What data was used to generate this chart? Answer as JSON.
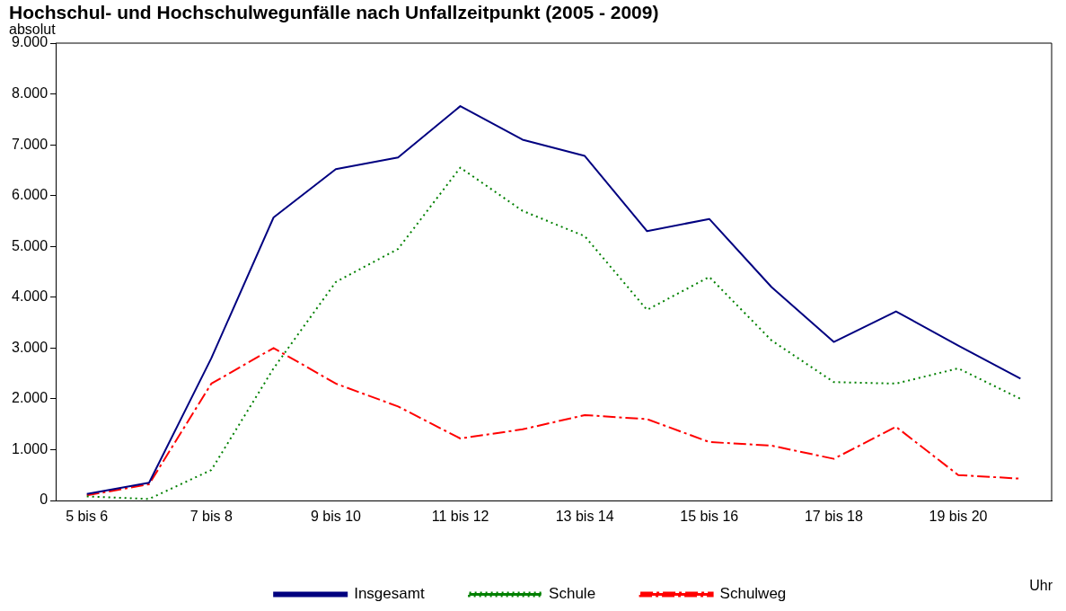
{
  "chart_data": {
    "type": "line",
    "title": "Hochschul- und Hochschulwegunfälle nach Unfallzeitpunkt (2005 - 2009)",
    "ylabel": "absolut",
    "xlabel": "Uhr",
    "categories": [
      "5 bis 6",
      null,
      "7 bis 8",
      null,
      "9 bis 10",
      null,
      "11 bis 12",
      null,
      "13 bis 14",
      null,
      "15 bis 16",
      null,
      "17 bis 18",
      null,
      "19 bis 20",
      null
    ],
    "series": [
      {
        "name": "Insgesamt",
        "color": "#000080",
        "line_style": "solid",
        "values": [
          130,
          350,
          2800,
          5570,
          6520,
          6750,
          7760,
          7100,
          6780,
          5300,
          5540,
          4200,
          3120,
          3720,
          3050,
          2400
        ]
      },
      {
        "name": "Schule",
        "color": "#008000",
        "line_style": "dotted",
        "values": [
          80,
          30,
          600,
          2600,
          4300,
          4950,
          6550,
          5700,
          5200,
          3750,
          4400,
          3150,
          2330,
          2300,
          2600,
          2000
        ]
      },
      {
        "name": "Schulweg",
        "color": "#ff0000",
        "line_style": "dashed",
        "values": [
          100,
          320,
          2300,
          3000,
          2300,
          1850,
          1220,
          1400,
          1680,
          1600,
          1150,
          1080,
          820,
          1450,
          500,
          430
        ]
      }
    ],
    "ylim": [
      0,
      9000
    ],
    "yticks": [
      {
        "value": 0,
        "label": "0"
      },
      {
        "value": 1000,
        "label": "1.000"
      },
      {
        "value": 2000,
        "label": "2.000"
      },
      {
        "value": 3000,
        "label": "3.000"
      },
      {
        "value": 4000,
        "label": "4.000"
      },
      {
        "value": 5000,
        "label": "5.000"
      },
      {
        "value": 6000,
        "label": "6.000"
      },
      {
        "value": 7000,
        "label": "7.000"
      },
      {
        "value": 8000,
        "label": "8.000"
      },
      {
        "value": 9000,
        "label": "9.000"
      }
    ],
    "grid": false,
    "legend": "bottom",
    "marker": "none"
  }
}
